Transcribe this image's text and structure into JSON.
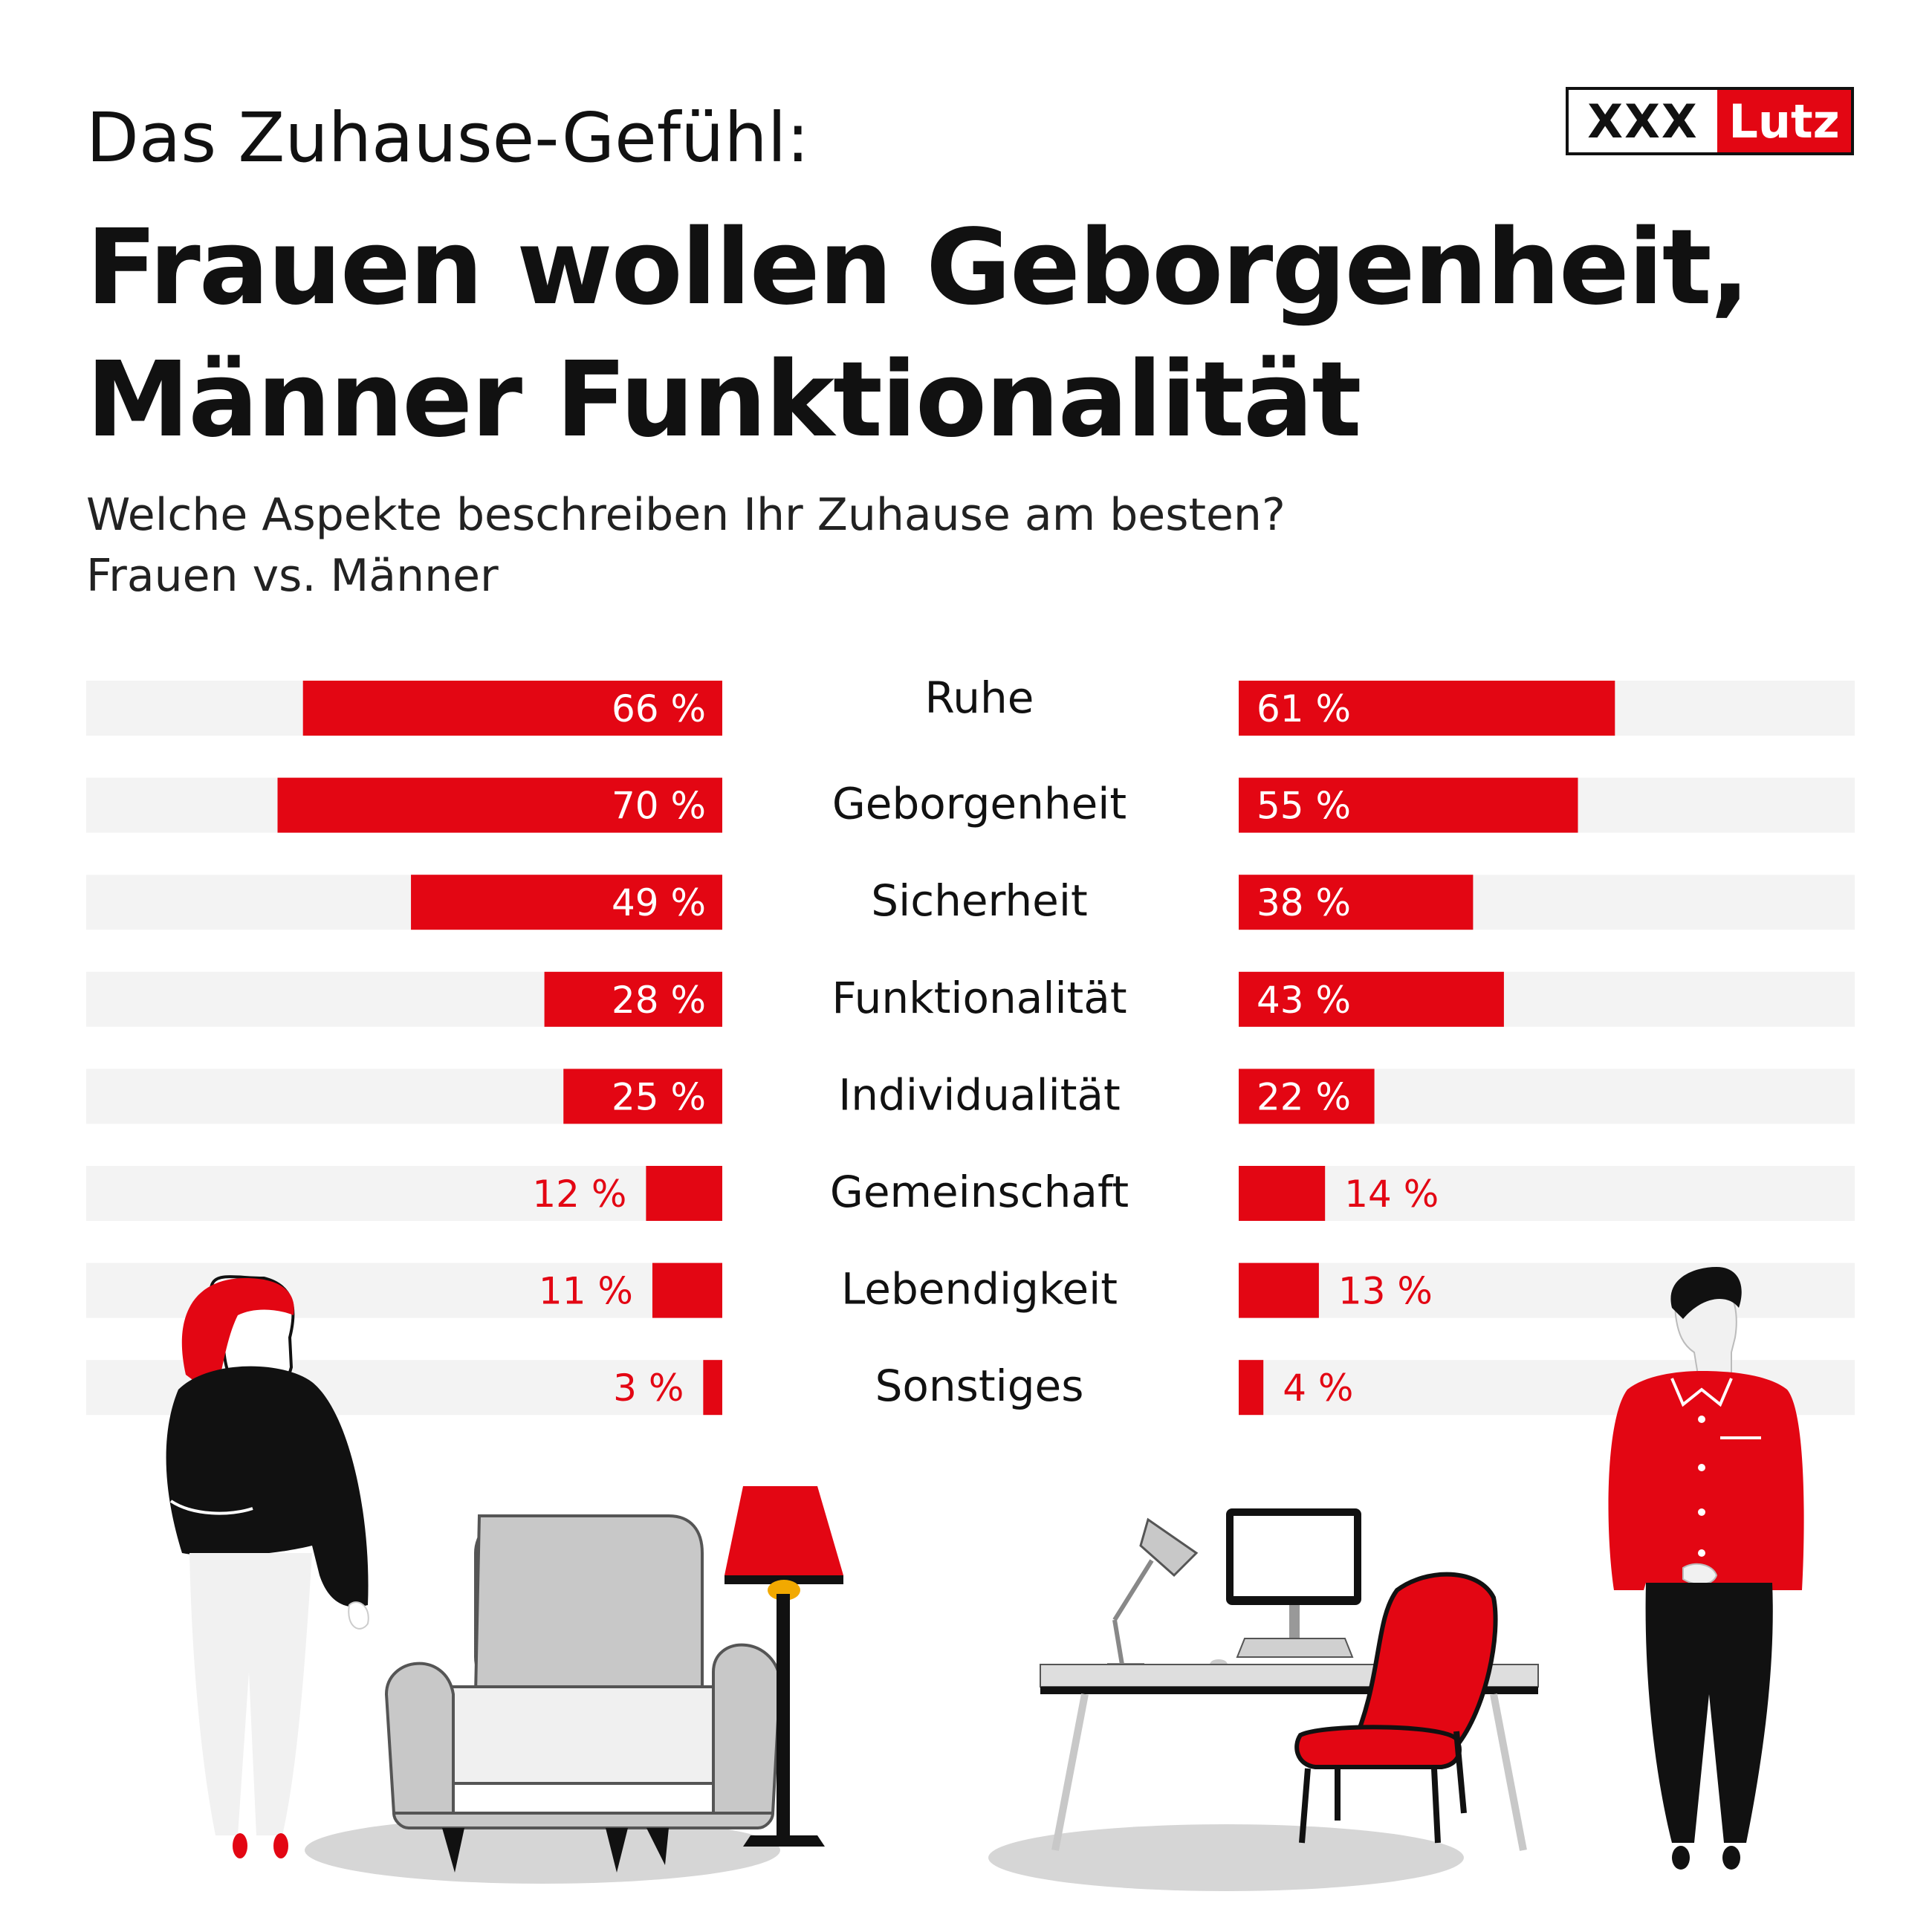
{
  "header": {
    "kicker": "Das Zuhause-Gefühl:",
    "title_line1": "Frauen wollen Geborgenheit,",
    "title_line2": "Männer Funktionalität",
    "question": "Welche Aspekte beschreiben Ihr Zuhause am besten?",
    "comparison": "Frauen vs. Männer"
  },
  "logo": {
    "part1": "XXX",
    "part2": "Lutz"
  },
  "colors": {
    "accent": "#e30613",
    "track": "#f3f3f3",
    "text": "#111111"
  },
  "chart_data": {
    "type": "bar",
    "orientation": "horizontal-butterfly",
    "title": "Frauen wollen Geborgenheit, Männer Funktionalität",
    "subtitle": "Welche Aspekte beschreiben Ihr Zuhause am besten?",
    "categories": [
      "Ruhe",
      "Geborgenheit",
      "Sicherheit",
      "Funktionalität",
      "Individualität",
      "Gemeinschaft",
      "Lebendigkeit",
      "Sonstiges"
    ],
    "series": [
      {
        "values": [
          66,
          70,
          49,
          28,
          25,
          12,
          11,
          3
        ],
        "labels": [
          "66 %",
          "70 %",
          "49 %",
          "28 %",
          "25 %",
          "12 %",
          "11 %",
          "3 %"
        ]
      },
      {
        "values": [
          61,
          55,
          38,
          43,
          22,
          14,
          13,
          4
        ],
        "labels": [
          "61 %",
          "55 %",
          "38 %",
          "43 %",
          "22 %",
          "14 %",
          "13 %",
          "4 %"
        ]
      }
    ],
    "unit": "%"
  }
}
